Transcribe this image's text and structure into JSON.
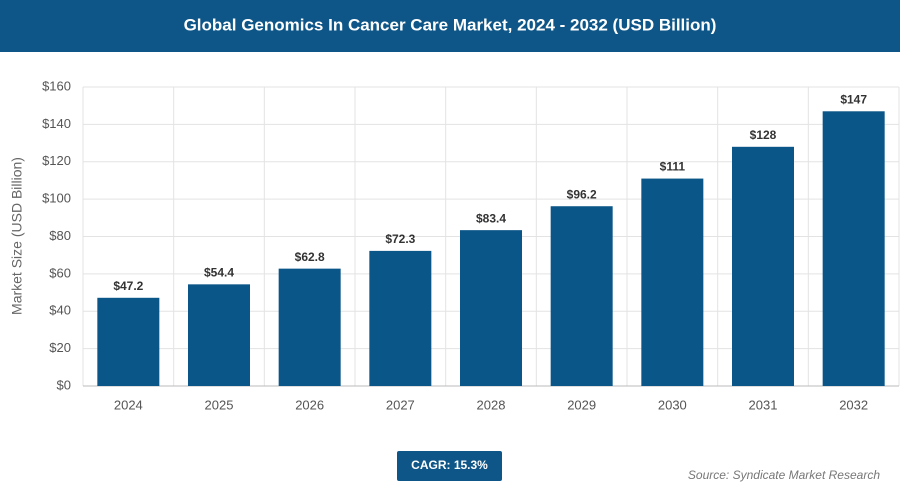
{
  "chart_data": {
    "type": "bar",
    "title": "Global Genomics In Cancer Care Market, 2024 - 2032 (USD Billion)",
    "y_label": "Market Size (USD Billion)",
    "categories": [
      "2024",
      "2025",
      "2026",
      "2027",
      "2028",
      "2029",
      "2030",
      "2031",
      "2032"
    ],
    "values": [
      47.2,
      54.4,
      62.8,
      72.3,
      83.4,
      96.2,
      111,
      128,
      147
    ],
    "value_labels": [
      "$47.2",
      "$54.4",
      "$62.8",
      "$72.3",
      "$83.4",
      "$96.2",
      "$111",
      "$128",
      "$147"
    ],
    "color": "#0b5688",
    "ylim": [
      0,
      160
    ],
    "yticks": [
      {
        "value": 0,
        "label": "$0"
      },
      {
        "value": 20,
        "label": "$20"
      },
      {
        "value": 40,
        "label": "$40"
      },
      {
        "value": 60,
        "label": "$60"
      },
      {
        "value": 80,
        "label": "$80"
      },
      {
        "value": 100,
        "label": "$100"
      },
      {
        "value": 120,
        "label": "$120"
      },
      {
        "value": 140,
        "label": "$140"
      },
      {
        "value": 160,
        "label": "$160"
      }
    ],
    "grid": true,
    "cagr_label": "CAGR: 15.3%",
    "source": "Source: Syndicate Market Research"
  }
}
